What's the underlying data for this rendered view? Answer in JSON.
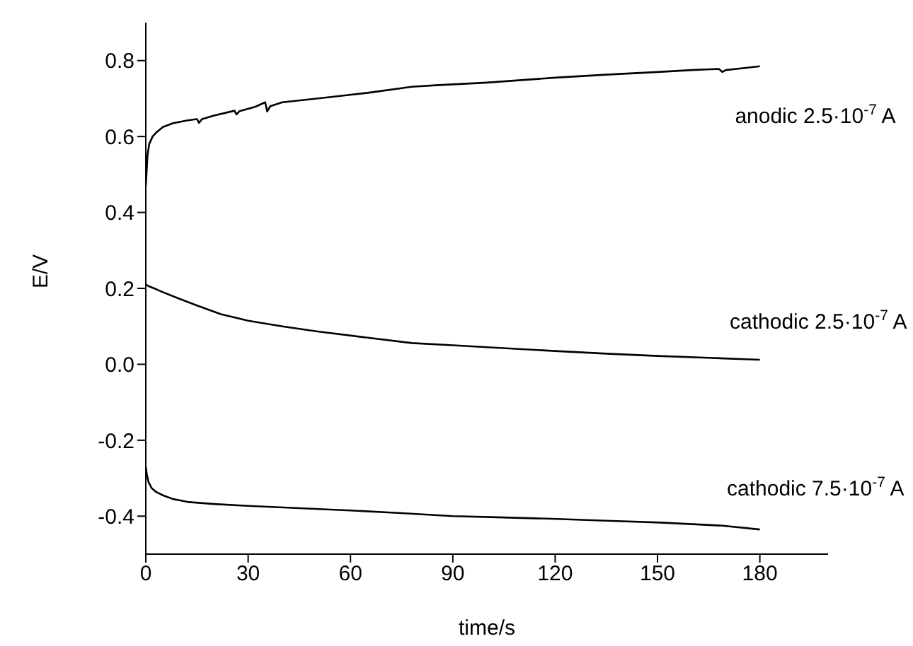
{
  "chart_data": {
    "type": "line",
    "xlabel": "time/s",
    "ylabel": "E/V",
    "xlim": [
      0,
      200
    ],
    "xticks": [
      0,
      30,
      60,
      90,
      120,
      150,
      180
    ],
    "ylim": [
      -0.5,
      0.9
    ],
    "yticks": [
      -0.4,
      -0.2,
      {
        "value": 0,
        "label": "0.0"
      },
      0.2,
      0.4,
      0.6,
      0.8
    ],
    "grid": false,
    "legend": false,
    "marker": "none",
    "line_style": "solid",
    "series": [
      {
        "name": "anodic 2.5·10$^{-7}$ A",
        "color": "#000000",
        "x": [
          0,
          0.5,
          1,
          2,
          3,
          5,
          8,
          12,
          15,
          15.6,
          16.5,
          20,
          26,
          26.6,
          27.5,
          32,
          35,
          35.6,
          36.5,
          40,
          50,
          57,
          65,
          78,
          85,
          100,
          120,
          135,
          150,
          160,
          168,
          169,
          170,
          175,
          180
        ],
        "values": [
          0.47,
          0.55,
          0.58,
          0.6,
          0.61,
          0.625,
          0.635,
          0.642,
          0.646,
          0.636,
          0.646,
          0.655,
          0.668,
          0.658,
          0.667,
          0.678,
          0.69,
          0.666,
          0.68,
          0.69,
          0.7,
          0.707,
          0.715,
          0.731,
          0.735,
          0.742,
          0.755,
          0.763,
          0.77,
          0.775,
          0.778,
          0.77,
          0.775,
          0.78,
          0.785
        ]
      },
      {
        "name": "cathodic 2.5·10$^{-7}$ A",
        "color": "#000000",
        "x": [
          0,
          1,
          3,
          5,
          10,
          15,
          22,
          30,
          40,
          50,
          65,
          78,
          90,
          100,
          120,
          135,
          150,
          165,
          180
        ],
        "values": [
          0.21,
          0.205,
          0.198,
          0.19,
          0.172,
          0.155,
          0.132,
          0.115,
          0.1,
          0.087,
          0.07,
          0.056,
          0.05,
          0.045,
          0.035,
          0.028,
          0.022,
          0.017,
          0.012
        ]
      },
      {
        "name": "cathodic 7.5·10$^{-7}$ A",
        "color": "#000000",
        "x": [
          0,
          0.3,
          0.8,
          1.7,
          3,
          5,
          8,
          12.7,
          20,
          30,
          45,
          60,
          75,
          90,
          103,
          119,
          135,
          151,
          169,
          180
        ],
        "values": [
          -0.27,
          -0.29,
          -0.31,
          -0.326,
          -0.336,
          -0.345,
          -0.355,
          -0.363,
          -0.368,
          -0.373,
          -0.379,
          -0.385,
          -0.392,
          -0.4,
          -0.403,
          -0.407,
          -0.412,
          -0.417,
          -0.425,
          -0.435
        ]
      }
    ]
  }
}
